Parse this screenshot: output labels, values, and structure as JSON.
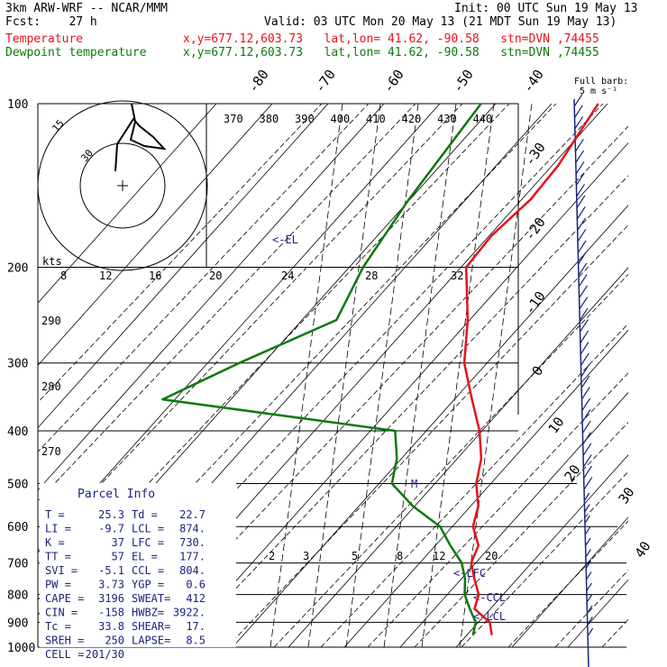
{
  "header": {
    "left_line1": "3km ARW-WRF -- NCAR/MMM",
    "left_line2": "Fcst:    27 h",
    "init": "Init: 00 UTC Sun 19 May 13",
    "valid": "Valid: 03 UTC Mon 20 May 13 (21 MDT Sun 19 May 13)",
    "temp_label": "Temperature",
    "dew_label": "Dewpoint temperature",
    "location_text": "x,y=677.12,603.73   lat,lon= 41.62, -90.58   stn=DVN ,74455",
    "temp_color": "#e8121a",
    "dew_color": "#0a7a0a"
  },
  "chart_data": {
    "type": "line",
    "pressure_ticks": [
      100,
      200,
      300,
      400,
      500,
      600,
      700,
      800,
      900,
      1000
    ],
    "isotherm_labels_top": [
      "-80",
      "-70",
      "-60",
      "-50",
      "-40"
    ],
    "isotherm_labels_right": [
      "-30",
      "-20",
      "-10",
      "0",
      "10",
      "20",
      "30",
      "40"
    ],
    "theta_e_labels": [
      "370",
      "380",
      "390",
      "400",
      "410",
      "420",
      "430",
      "440"
    ],
    "theta_labels_left": [
      "290",
      "280",
      "270"
    ],
    "wind_speed_labels": [
      "kts",
      "8",
      "12",
      "16",
      "20",
      "24",
      "28",
      "32"
    ],
    "mixing_ratio_labels": [
      "2",
      "3",
      "5",
      "8",
      "12",
      "20"
    ],
    "hodograph_labels": [
      "15",
      "30"
    ],
    "full_barb_label": [
      "Full barb:",
      "5 m s⁻¹"
    ],
    "level_labels": {
      "el": "<-EL",
      "lfc": "<-LFC",
      "ccl": "<-CCL",
      "lcl": "<-LCL",
      "m": "M"
    },
    "series": [
      {
        "name": "Temperature",
        "color": "#e8121a",
        "points": [
          [
            100,
            -61
          ],
          [
            130,
            -57
          ],
          [
            150,
            -56
          ],
          [
            175,
            -57
          ],
          [
            200,
            -56
          ],
          [
            250,
            -45
          ],
          [
            300,
            -37
          ],
          [
            350,
            -28
          ],
          [
            400,
            -20
          ],
          [
            450,
            -14
          ],
          [
            500,
            -10
          ],
          [
            550,
            -5
          ],
          [
            600,
            -2
          ],
          [
            650,
            3
          ],
          [
            700,
            5
          ],
          [
            750,
            9
          ],
          [
            800,
            13
          ],
          [
            850,
            15
          ],
          [
            900,
            21
          ],
          [
            950,
            24
          ]
        ]
      },
      {
        "name": "Dewpoint temperature",
        "color": "#0a7a0a",
        "points": [
          [
            100,
            -86
          ],
          [
            150,
            -82
          ],
          [
            200,
            -78
          ],
          [
            250,
            -73
          ],
          [
            300,
            -85
          ],
          [
            350,
            -94
          ],
          [
            400,
            -38
          ],
          [
            450,
            -32
          ],
          [
            500,
            -28
          ],
          [
            550,
            -19
          ],
          [
            600,
            -9
          ],
          [
            650,
            -3
          ],
          [
            700,
            3
          ],
          [
            750,
            7
          ],
          [
            800,
            10
          ],
          [
            850,
            14
          ],
          [
            900,
            18
          ],
          [
            950,
            20
          ]
        ]
      }
    ],
    "parcel_info": {
      "title": "Parcel Info",
      "rows": [
        [
          "T  =",
          "25.3",
          "Td =",
          "22.7"
        ],
        [
          "LI =",
          "-9.7",
          "LCL =",
          "874."
        ],
        [
          "K  =",
          "37",
          "LFC =",
          "730."
        ],
        [
          "TT =",
          "57",
          "EL =",
          "177."
        ],
        [
          "SVI =",
          "-5.1",
          "CCL =",
          "804."
        ],
        [
          "PW =",
          "3.73",
          "YGP =",
          "0.6"
        ],
        [
          "CAPE =",
          "3196",
          "SWEAT=",
          "412"
        ],
        [
          "CIN =",
          "-158",
          "HWBZ=",
          "3922."
        ],
        [
          "Tc =",
          "33.8",
          "SHEAR=",
          "17."
        ],
        [
          "SREH =",
          "250",
          "LAPSE=",
          "8.5"
        ],
        [
          "CELL =",
          "201/30",
          "",
          ""
        ]
      ]
    }
  }
}
